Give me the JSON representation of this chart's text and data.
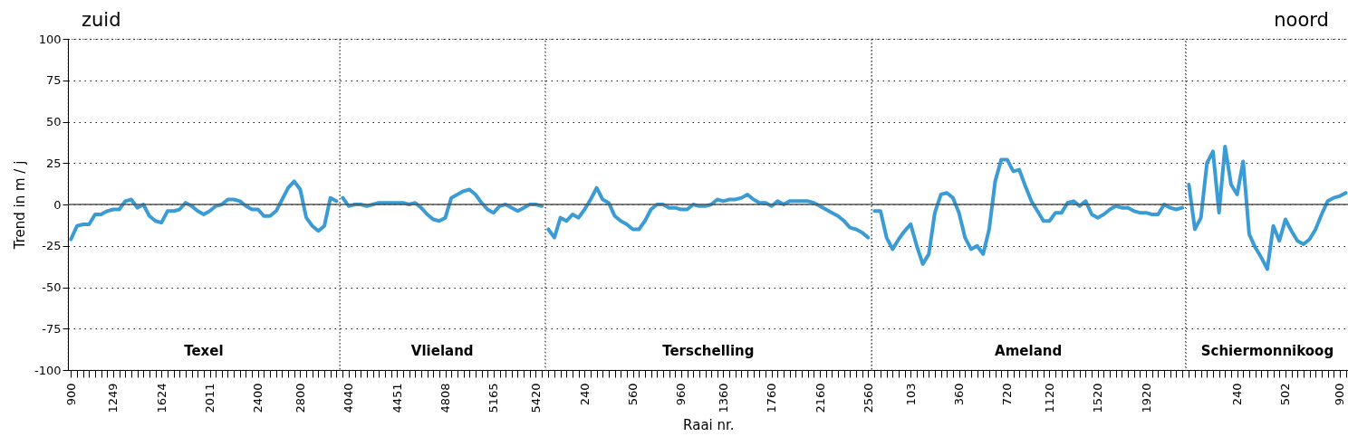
{
  "chart_data": [
    {
      "type": "line",
      "title": "zuid",
      "ylabel": "Trend in m / j",
      "annotations": [
        "Texel"
      ],
      "grid": "y",
      "ylim": [
        -100,
        100
      ],
      "yticks": [
        -100,
        -75,
        -50,
        -25,
        0,
        25,
        50,
        75,
        100
      ],
      "categories": [
        "900",
        null,
        null,
        null,
        null,
        null,
        null,
        "1249",
        null,
        null,
        null,
        null,
        null,
        null,
        null,
        "1624",
        null,
        null,
        null,
        null,
        null,
        null,
        null,
        "2011",
        null,
        null,
        null,
        null,
        null,
        null,
        null,
        "2400",
        null,
        null,
        null,
        null,
        null,
        null,
        "2800",
        null,
        null,
        null,
        null,
        null,
        null
      ],
      "ref_lines": [
        {
          "axis": "y",
          "value": 0,
          "color": "#555555",
          "line_style": "solid"
        }
      ],
      "series": [
        {
          "color": "#3a9bd5",
          "values": [
            -21,
            -13,
            -12,
            -12,
            -6,
            -6,
            -4,
            -3,
            -3,
            2,
            3,
            -2,
            0,
            -7,
            -10,
            -11,
            -4,
            -4,
            -3,
            1,
            -1,
            -4,
            -6,
            -4,
            -1,
            0,
            3,
            3,
            2,
            -1,
            -3,
            -3,
            -7,
            -7,
            -4,
            3,
            10,
            14,
            9,
            -8,
            -13,
            -16,
            -13,
            4,
            2
          ]
        }
      ]
    },
    {
      "type": "line",
      "tick_labels": "x",
      "annotations": [
        "Vlieland"
      ],
      "grid": "y",
      "ylim": [
        -100,
        100
      ],
      "yticks": [
        -100,
        -75,
        -50,
        -25,
        0,
        25,
        50,
        75,
        100
      ],
      "categories": [
        null,
        "4040",
        null,
        null,
        null,
        null,
        null,
        null,
        null,
        "4451",
        null,
        null,
        null,
        null,
        null,
        null,
        null,
        "4808",
        null,
        null,
        null,
        null,
        null,
        null,
        null,
        "5165",
        null,
        null,
        null,
        null,
        null,
        null,
        "5420",
        null
      ],
      "ref_lines": [
        {
          "axis": "y",
          "value": 0,
          "color": "#555555",
          "line_style": "solid"
        }
      ],
      "series": [
        {
          "color": "#3a9bd5",
          "values": [
            4,
            -1,
            0,
            0,
            -1,
            0,
            1,
            1,
            1,
            1,
            1,
            0,
            1,
            -2,
            -6,
            -9,
            -10,
            -8,
            4,
            6,
            8,
            9,
            6,
            1,
            -3,
            -5,
            -1,
            0,
            -2,
            -4,
            -2,
            0,
            0,
            -1
          ]
        }
      ]
    },
    {
      "type": "line",
      "xlabel": "Raai nr.",
      "tick_labels": "x",
      "annotations": [
        "Terschelling"
      ],
      "grid": "y",
      "ylim": [
        -100,
        100
      ],
      "yticks": [
        -100,
        -75,
        -50,
        -25,
        0,
        25,
        50,
        75,
        100
      ],
      "categories": [
        null,
        null,
        null,
        null,
        null,
        null,
        "240",
        null,
        null,
        null,
        null,
        null,
        null,
        null,
        "560",
        null,
        null,
        null,
        null,
        null,
        null,
        null,
        "960",
        null,
        null,
        null,
        null,
        null,
        null,
        "1360",
        null,
        null,
        null,
        null,
        null,
        null,
        null,
        "1760",
        null,
        null,
        null,
        null,
        null,
        null,
        null,
        "2160",
        null,
        null,
        null,
        null,
        null,
        null,
        null,
        "2560"
      ],
      "ref_lines": [
        {
          "axis": "y",
          "value": 0,
          "color": "#555555",
          "line_style": "solid"
        }
      ],
      "series": [
        {
          "color": "#3a9bd5",
          "values": [
            -15,
            -20,
            -8,
            -10,
            -6,
            -8,
            -3,
            3,
            10,
            3,
            1,
            -7,
            -10,
            -12,
            -15,
            -15,
            -10,
            -3,
            0,
            0,
            -2,
            -2,
            -3,
            -3,
            0,
            -1,
            -1,
            0,
            3,
            2,
            3,
            3,
            4,
            6,
            3,
            1,
            1,
            -1,
            2,
            0,
            2,
            2,
            2,
            2,
            1,
            -1,
            -3,
            -5,
            -7,
            -10,
            -14,
            -15,
            -17,
            -20
          ]
        }
      ]
    },
    {
      "type": "line",
      "tick_labels": "x",
      "annotations": [
        "Ameland"
      ],
      "grid": "y",
      "ylim": [
        -100,
        100
      ],
      "yticks": [
        -100,
        -75,
        -50,
        -25,
        0,
        25,
        50,
        75,
        100
      ],
      "categories": [
        null,
        null,
        null,
        null,
        null,
        null,
        "103",
        null,
        null,
        null,
        null,
        null,
        null,
        null,
        "360",
        null,
        null,
        null,
        null,
        null,
        null,
        null,
        "720",
        null,
        null,
        null,
        null,
        null,
        null,
        "1120",
        null,
        null,
        null,
        null,
        null,
        null,
        null,
        "1520",
        null,
        null,
        null,
        null,
        null,
        null,
        null,
        "1920",
        null,
        null,
        null,
        null,
        null,
        null
      ],
      "ref_lines": [
        {
          "axis": "y",
          "value": 0,
          "color": "#555555",
          "line_style": "solid"
        }
      ],
      "series": [
        {
          "color": "#3a9bd5",
          "values": [
            -4,
            -4,
            -20,
            -27,
            -21,
            -16,
            -12,
            -25,
            -36,
            -30,
            -5,
            6,
            7,
            4,
            -5,
            -20,
            -27,
            -25,
            -30,
            -15,
            14,
            27,
            27,
            20,
            21,
            11,
            2,
            -4,
            -10,
            -10,
            -5,
            -5,
            1,
            2,
            -1,
            2,
            -6,
            -8,
            -6,
            -3,
            -1,
            -2,
            -2,
            -4,
            -5,
            -5,
            -6,
            -6,
            0,
            -2,
            -3,
            -2
          ]
        }
      ]
    },
    {
      "type": "line",
      "title": "noord",
      "tick_labels": "x",
      "annotations": [
        "Schiermonnikoog"
      ],
      "grid": "y",
      "ylim": [
        -100,
        100
      ],
      "yticks": [
        -100,
        -75,
        -50,
        -25,
        0,
        25,
        50,
        75,
        100
      ],
      "categories": [
        null,
        null,
        null,
        null,
        null,
        null,
        null,
        null,
        "240",
        null,
        null,
        null,
        null,
        null,
        null,
        null,
        "502",
        null,
        null,
        null,
        null,
        null,
        null,
        null,
        null,
        "900",
        null
      ],
      "ref_lines": [
        {
          "axis": "y",
          "value": 0,
          "color": "#555555",
          "line_style": "solid"
        }
      ],
      "series": [
        {
          "color": "#3a9bd5",
          "values": [
            12,
            -15,
            -8,
            25,
            32,
            -5,
            35,
            12,
            6,
            26,
            -18,
            -26,
            -32,
            -39,
            -13,
            -22,
            -9,
            -16,
            -22,
            -24,
            -21,
            -15,
            -6,
            2,
            4,
            5,
            7
          ]
        }
      ]
    }
  ]
}
